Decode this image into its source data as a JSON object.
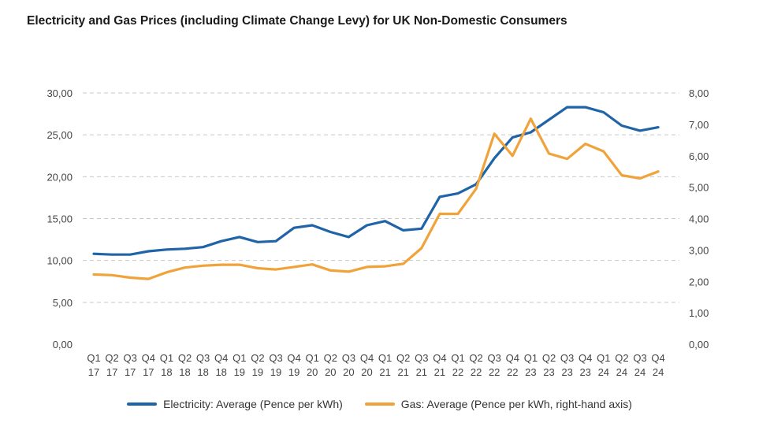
{
  "chart_data": {
    "type": "line",
    "title": "Electricity and Gas Prices (including Climate Change Levy) for UK Non-Domestic Consumers",
    "categories": [
      [
        "Q1",
        "17"
      ],
      [
        "Q2",
        "17"
      ],
      [
        "Q3",
        "17"
      ],
      [
        "Q4",
        "17"
      ],
      [
        "Q1",
        "18"
      ],
      [
        "Q2",
        "18"
      ],
      [
        "Q3",
        "18"
      ],
      [
        "Q4",
        "18"
      ],
      [
        "Q1",
        "19"
      ],
      [
        "Q2",
        "19"
      ],
      [
        "Q3",
        "19"
      ],
      [
        "Q4",
        "19"
      ],
      [
        "Q1",
        "20"
      ],
      [
        "Q2",
        "20"
      ],
      [
        "Q3",
        "20"
      ],
      [
        "Q4",
        "20"
      ],
      [
        "Q1",
        "21"
      ],
      [
        "Q2",
        "21"
      ],
      [
        "Q3",
        "21"
      ],
      [
        "Q4",
        "21"
      ],
      [
        "Q1",
        "22"
      ],
      [
        "Q2",
        "22"
      ],
      [
        "Q3",
        "22"
      ],
      [
        "Q4",
        "22"
      ],
      [
        "Q1",
        "23"
      ],
      [
        "Q2",
        "23"
      ],
      [
        "Q3",
        "23"
      ],
      [
        "Q4",
        "23"
      ],
      [
        "Q1",
        "24"
      ],
      [
        "Q2",
        "24"
      ],
      [
        "Q3",
        "24"
      ],
      [
        "Q4",
        "24"
      ]
    ],
    "left_axis": {
      "ylim": [
        0,
        30
      ],
      "ticks": [
        "0,00",
        "5,00",
        "10,00",
        "15,00",
        "20,00",
        "25,00",
        "30,00"
      ]
    },
    "right_axis": {
      "ylim": [
        0,
        8
      ],
      "ticks": [
        "0,00",
        "1,00",
        "2,00",
        "3,00",
        "4,00",
        "5,00",
        "6,00",
        "7,00",
        "8,00"
      ]
    },
    "grid": "horizontal-dashed",
    "legend_position": "bottom",
    "series": [
      {
        "name": "Electricity: Average (Pence per kWh)",
        "axis": "left",
        "color": "#2064a8",
        "values": [
          10.8,
          10.7,
          10.7,
          11.1,
          11.3,
          11.4,
          11.6,
          12.3,
          12.8,
          12.2,
          12.3,
          13.9,
          14.2,
          13.4,
          12.8,
          14.2,
          14.7,
          13.6,
          13.8,
          17.6,
          18.0,
          19.1,
          22.2,
          24.7,
          25.3,
          26.8,
          28.3,
          28.3,
          27.7,
          26.1,
          25.5,
          25.9
        ]
      },
      {
        "name": "Gas: Average (Pence per kWh, right-hand axis)",
        "axis": "right",
        "color": "#f0a33a",
        "values": [
          2.22,
          2.2,
          2.12,
          2.08,
          2.29,
          2.44,
          2.5,
          2.53,
          2.53,
          2.42,
          2.38,
          2.46,
          2.54,
          2.35,
          2.31,
          2.46,
          2.48,
          2.56,
          3.06,
          4.15,
          4.15,
          4.95,
          6.7,
          6.0,
          7.18,
          6.07,
          5.9,
          6.38,
          6.14,
          5.38,
          5.28,
          5.5
        ]
      }
    ]
  }
}
